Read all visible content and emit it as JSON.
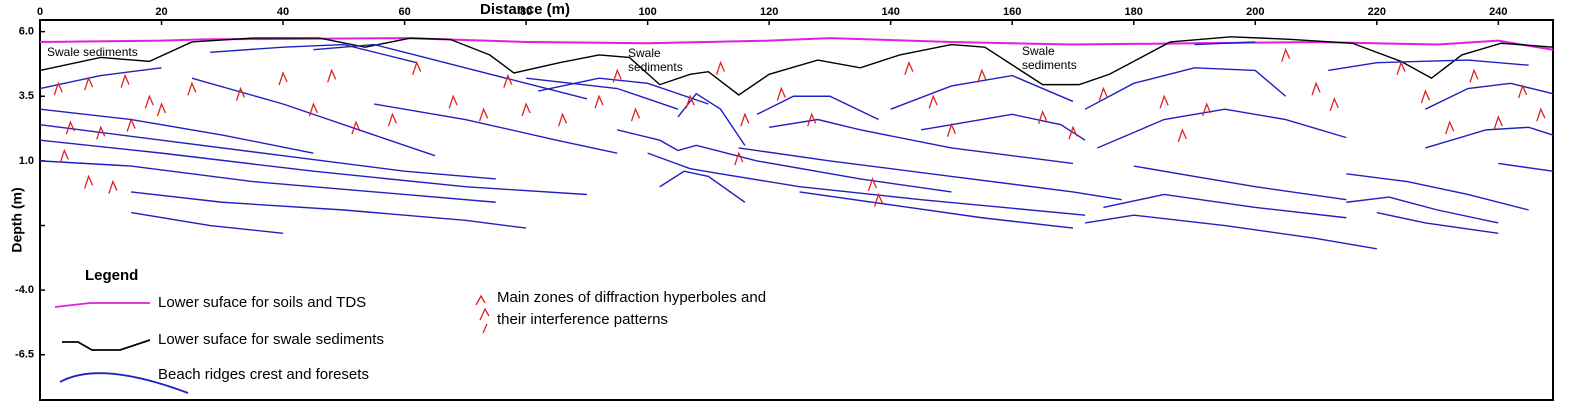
{
  "chart_data": {
    "type": "line",
    "title": "Distance (m)",
    "y_label": "Depth (m)",
    "legend_title": "Legend",
    "annotations": [
      "Swale sediments",
      "Swale sediments",
      "Swale sediments"
    ],
    "xlim": [
      0,
      249
    ],
    "ylim": [
      -8.25,
      6.45
    ],
    "xticks": [
      0,
      20,
      40,
      60,
      80,
      100,
      120,
      140,
      160,
      180,
      200,
      220,
      240
    ],
    "yticks": [
      {
        "value": 6,
        "label": "6.0"
      },
      3.5,
      {
        "value": 1,
        "label": "1.0"
      },
      {
        "value": -1.5,
        "label": null
      },
      {
        "value": -4,
        "label": "-4.0"
      },
      -6.5
    ],
    "series": [
      {
        "name": "Lower suface for soils and TDS",
        "color": "#e020e0",
        "x": [
          0,
          20,
          27,
          60,
          80,
          100,
          120,
          130,
          150,
          170,
          190,
          210,
          230,
          240,
          249
        ],
        "values": [
          5.6,
          5.65,
          5.7,
          5.75,
          5.6,
          5.55,
          5.65,
          5.75,
          5.6,
          5.5,
          5.55,
          5.6,
          5.5,
          5.65,
          5.3
        ]
      },
      {
        "name": "Lower suface for swale sediments",
        "color": "#000000",
        "x": [
          0,
          10,
          18,
          25,
          35,
          46,
          53.5,
          61,
          67.5,
          74,
          78,
          85.5,
          92,
          97,
          102,
          107,
          110,
          115,
          120,
          128,
          135,
          141.5,
          150,
          155.5,
          165,
          171,
          176,
          186,
          196,
          206,
          216,
          224,
          229,
          234,
          240.5,
          249
        ],
        "values": [
          4.5,
          5.0,
          4.85,
          5.6,
          5.75,
          5.75,
          5.4,
          5.75,
          5.7,
          5.1,
          4.4,
          4.8,
          5.1,
          5.0,
          3.95,
          4.35,
          4.45,
          3.55,
          4.35,
          4.9,
          4.6,
          5.1,
          5.5,
          5.4,
          3.95,
          3.95,
          4.35,
          5.6,
          5.8,
          5.7,
          5.55,
          4.85,
          4.2,
          5.1,
          5.55,
          5.4
        ]
      },
      {
        "name": "Beach ridges crest and foresets",
        "color": "#2020c0",
        "x": [
          0,
          10,
          20,
          null,
          0,
          15,
          30,
          45,
          null,
          0,
          20,
          40,
          60,
          75,
          null,
          0,
          20,
          45,
          70,
          90,
          null,
          0,
          15,
          35,
          60,
          75,
          null,
          15,
          30,
          50,
          70,
          80,
          null,
          15,
          28,
          40,
          null,
          25,
          40,
          55,
          65,
          null,
          28,
          40,
          50,
          62,
          null,
          45,
          55,
          65,
          80,
          90,
          null,
          55,
          70,
          85,
          95,
          null,
          82,
          92,
          100,
          110,
          null,
          80,
          95,
          105,
          null,
          95,
          102,
          105,
          108,
          118,
          135,
          150,
          null,
          100,
          107,
          112,
          125,
          145,
          172,
          null,
          102,
          106,
          110,
          116,
          null,
          105,
          108,
          112,
          116,
          null,
          118,
          124,
          130,
          138,
          null,
          120,
          128,
          135,
          150,
          170,
          null,
          115,
          130,
          150,
          170,
          178,
          null,
          125,
          140,
          155,
          170,
          null,
          140,
          150,
          160,
          170,
          null,
          145,
          160,
          168,
          172,
          null,
          174,
          185,
          195,
          205,
          215,
          null,
          172,
          180,
          190,
          200,
          205,
          null,
          190,
          200,
          null,
          175,
          185,
          200,
          215,
          null,
          172,
          180,
          195,
          210,
          220,
          null,
          180,
          190,
          200,
          215,
          null,
          212,
          220,
          235,
          245,
          null,
          228,
          235,
          242,
          249,
          null,
          228,
          238,
          245,
          249,
          null,
          215,
          225,
          235,
          245,
          null,
          215,
          222,
          230,
          240,
          null,
          220,
          228,
          240,
          null,
          240,
          249
        ],
        "values": [
          3.8,
          4.3,
          4.6,
          null,
          3.0,
          2.6,
          2.0,
          1.3,
          null,
          2.4,
          1.8,
          1.2,
          0.6,
          0.3,
          null,
          1.8,
          1.3,
          0.6,
          0.0,
          -0.3,
          null,
          1.0,
          0.8,
          0.2,
          -0.3,
          -0.6,
          null,
          -0.2,
          -0.6,
          -0.9,
          -1.3,
          -1.6,
          null,
          -1.0,
          -1.5,
          -1.8,
          null,
          4.2,
          3.2,
          2.0,
          1.2,
          null,
          5.2,
          5.4,
          5.5,
          4.8,
          null,
          5.3,
          5.5,
          4.9,
          4.0,
          3.4,
          null,
          3.2,
          2.6,
          1.8,
          1.3,
          null,
          3.7,
          4.2,
          4.0,
          3.2,
          null,
          4.2,
          3.8,
          3.0,
          null,
          2.2,
          1.8,
          1.4,
          1.6,
          1.0,
          0.3,
          -0.2,
          null,
          1.3,
          0.7,
          0.5,
          0.0,
          -0.5,
          -1.1,
          null,
          0.0,
          0.6,
          0.4,
          -0.6,
          null,
          2.7,
          3.6,
          3.0,
          1.6,
          null,
          2.8,
          3.5,
          3.5,
          2.6,
          null,
          2.3,
          2.6,
          2.2,
          1.5,
          0.9,
          null,
          1.5,
          1.0,
          0.4,
          -0.2,
          -0.5,
          null,
          -0.2,
          -0.7,
          -1.2,
          -1.6,
          null,
          3.0,
          3.9,
          4.3,
          3.3,
          null,
          2.2,
          2.8,
          2.4,
          1.8,
          null,
          1.5,
          2.6,
          3.0,
          2.6,
          1.9,
          null,
          3.0,
          4.0,
          4.6,
          4.5,
          3.5,
          null,
          5.5,
          5.6,
          null,
          -0.8,
          -0.3,
          -0.8,
          -1.2,
          null,
          -1.4,
          -1.1,
          -1.5,
          -2.0,
          -2.4,
          null,
          0.8,
          0.4,
          0.0,
          -0.5,
          null,
          4.5,
          4.8,
          4.9,
          4.7,
          null,
          3.0,
          3.8,
          4.0,
          3.6,
          null,
          1.5,
          2.2,
          2.3,
          2.0,
          null,
          0.5,
          0.2,
          -0.3,
          -0.9,
          null,
          -0.6,
          -0.4,
          -0.9,
          -1.4,
          null,
          -1.0,
          -1.4,
          -1.8,
          null,
          0.9,
          0.6
        ]
      },
      {
        "name": "Main zones of diffraction hyperboles and their interference patterns",
        "color": "#e02020",
        "marker": "hyperbola",
        "x": [
          3,
          8,
          14,
          5,
          10,
          15,
          4,
          8,
          12,
          18,
          20,
          25,
          33,
          40,
          45,
          48,
          52,
          58,
          62,
          68,
          73,
          77,
          80,
          86,
          92,
          95,
          98,
          107,
          112,
          115,
          116,
          122,
          127,
          137,
          138,
          143,
          147,
          150,
          155,
          165,
          170,
          175,
          185,
          188,
          192,
          205,
          210,
          213,
          224,
          228,
          232,
          236,
          240,
          244,
          247
        ],
        "values": [
          4.0,
          4.2,
          4.3,
          2.5,
          2.3,
          2.6,
          1.4,
          0.4,
          0.2,
          3.5,
          3.2,
          4.0,
          3.8,
          4.4,
          3.2,
          4.5,
          2.5,
          2.8,
          4.8,
          3.5,
          3.0,
          4.3,
          3.2,
          2.8,
          3.5,
          4.5,
          3.0,
          3.5,
          4.8,
          1.3,
          2.8,
          3.8,
          2.8,
          0.3,
          -0.3,
          4.8,
          3.5,
          2.4,
          4.5,
          2.9,
          2.3,
          3.8,
          3.5,
          2.2,
          3.2,
          5.3,
          4.0,
          3.4,
          4.8,
          3.7,
          2.5,
          4.5,
          2.7,
          3.9,
          3.0
        ]
      }
    ]
  }
}
